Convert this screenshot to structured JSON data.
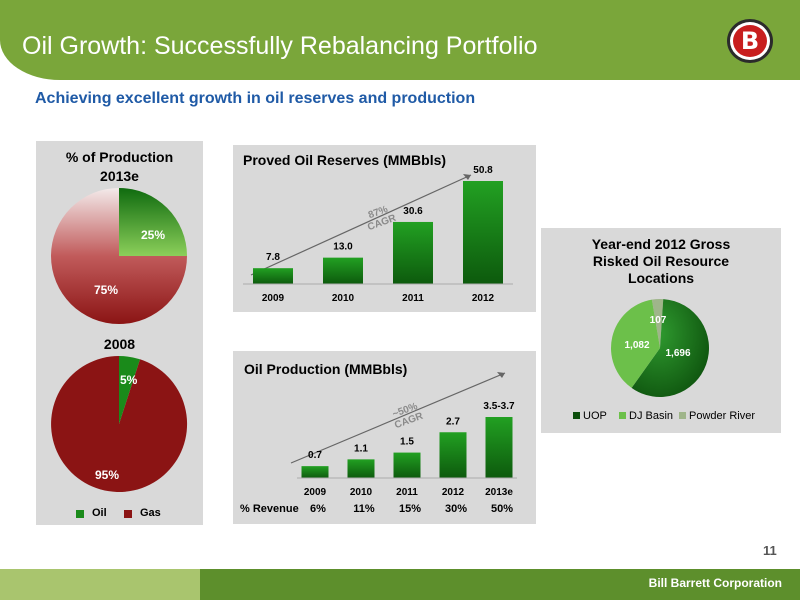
{
  "header": {
    "title": "Oil Growth: Successfully Rebalancing Portfolio",
    "logo_letter": "B"
  },
  "subtitle": "Achieving excellent growth in oil reserves and production",
  "footer": {
    "company": "Bill Barrett Corporation",
    "page_number": "11"
  },
  "colors": {
    "header_green": "#7aa63a",
    "oil_green": "#1a8a1a",
    "gas_red": "#8b1414",
    "subtitle_blue": "#1f5aa6"
  },
  "production_mix": {
    "title_line1": "% of Production",
    "title_line2": "2013e",
    "pie_2013": {
      "oil_label": "25%",
      "gas_label": "75%"
    },
    "label_2008": "2008",
    "pie_2008": {
      "oil_label": "5%",
      "gas_label": "95%"
    },
    "legend": {
      "oil": "Oil",
      "gas": "Gas"
    }
  },
  "reserves": {
    "title": "Proved Oil Reserves (MMBbls)",
    "cagr_line1": "87%",
    "cagr_line2": "CAGR"
  },
  "production": {
    "title": "Oil Production (MMBbls)",
    "cagr_line1": "~50%",
    "cagr_line2": "CAGR",
    "revenue_label": "% Revenue",
    "revenue_values": [
      "6%",
      "11%",
      "15%",
      "30%",
      "50%"
    ]
  },
  "locations": {
    "title_line1": "Year-end 2012 Gross",
    "title_line2": "Risked Oil Resource",
    "title_line3": "Locations",
    "legend": [
      "UOP",
      "DJ Basin",
      "Powder River"
    ]
  },
  "chart_data": [
    {
      "type": "pie",
      "title": "% of Production 2013e",
      "labels": [
        "Oil",
        "Gas"
      ],
      "values": [
        25,
        75
      ],
      "value_labels": [
        "25%",
        "75%"
      ]
    },
    {
      "type": "pie",
      "title": "2008",
      "labels": [
        "Oil",
        "Gas"
      ],
      "values": [
        5,
        95
      ],
      "value_labels": [
        "5%",
        "95%"
      ]
    },
    {
      "type": "bar",
      "title": "Proved Oil Reserves (MMBbls)",
      "categories": [
        "2009",
        "2010",
        "2011",
        "2012"
      ],
      "values": [
        7.8,
        13.0,
        30.6,
        50.8
      ],
      "value_labels": [
        "7.8",
        "13.0",
        "30.6",
        "50.8"
      ],
      "annotation": "87% CAGR"
    },
    {
      "type": "bar",
      "title": "Oil Production (MMBbls)",
      "categories": [
        "2009",
        "2010",
        "2011",
        "2012",
        "2013e"
      ],
      "values": [
        0.7,
        1.1,
        1.5,
        2.7,
        3.6
      ],
      "value_labels": [
        "0.7",
        "1.1",
        "1.5",
        "2.7",
        "3.5-3.7"
      ],
      "annotation": "~50% CAGR"
    },
    {
      "type": "pie",
      "title": "Year-end 2012 Gross Risked Oil Resource Locations",
      "labels": [
        "UOP",
        "DJ Basin",
        "Powder River"
      ],
      "values": [
        1696,
        1082,
        107
      ],
      "value_labels": [
        "1,696",
        "1,082",
        "107"
      ]
    }
  ]
}
